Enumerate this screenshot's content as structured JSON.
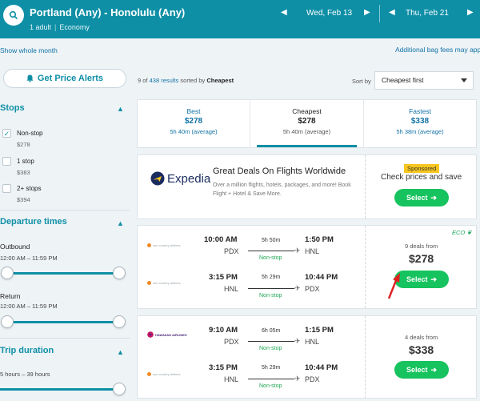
{
  "header": {
    "route": "Portland (Any) - Honolulu (Any)",
    "travelers": "1 adult",
    "cabin": "Economy",
    "depart_date": "Wed, Feb 13",
    "return_date": "Thu, Feb 21",
    "prev_arrow": "◀",
    "next_arrow": "▶"
  },
  "links": {
    "show_month": "Show whole month",
    "bag_fees": "Additional bag fees may apply"
  },
  "price_alert": {
    "label": "Get Price Alerts"
  },
  "filters": {
    "stops": {
      "title": "Stops",
      "options": [
        {
          "label": "Non-stop",
          "price": "$278",
          "checked": true
        },
        {
          "label": "1 stop",
          "price": "$383",
          "checked": false
        },
        {
          "label": "2+ stops",
          "price": "$394",
          "checked": false
        }
      ]
    },
    "departure": {
      "title": "Departure times",
      "outbound_label": "Outbound",
      "outbound_range": "12:00 AM – 11:59 PM",
      "return_label": "Return",
      "return_range": "12:00 AM – 11:59 PM"
    },
    "duration": {
      "title": "Trip duration",
      "range": "5 hours – 39 hours"
    }
  },
  "results": {
    "shown": "9",
    "of_word": "of",
    "total_link": "438 results",
    "sorted_by": "sorted by",
    "sort_key": "Cheapest",
    "sort_label": "Sort by",
    "sort_value": "Cheapest first"
  },
  "sort_tabs": [
    {
      "title": "Best",
      "price": "$278",
      "duration": "5h 40m (average)"
    },
    {
      "title": "Cheapest",
      "price": "$278",
      "duration": "5h 40m (average)"
    },
    {
      "title": "Fastest",
      "price": "$338",
      "duration": "5h 38m (average)"
    }
  ],
  "ad": {
    "brand": "Expedia",
    "title": "Great Deals On Flights Worldwide",
    "description": "Over a million flights, hotels, packages, and more! Book Flight + Hotel & Save More.",
    "sponsored": "Sponsored",
    "cta": "Check prices and save",
    "button": "Select"
  },
  "flights": [
    {
      "eco": "ECO",
      "deals": "9 deals from",
      "price": "$278",
      "button": "Select",
      "legs": [
        {
          "airline": "sun country airlines",
          "dep_time": "10:00 AM",
          "dep_code": "PDX",
          "duration": "5h 50m",
          "stops": "Non-stop",
          "arr_time": "1:50 PM",
          "arr_code": "HNL"
        },
        {
          "airline": "sun country airlines",
          "dep_time": "3:15 PM",
          "dep_code": "HNL",
          "duration": "5h 29m",
          "stops": "Non-stop",
          "arr_time": "10:44 PM",
          "arr_code": "PDX"
        }
      ]
    },
    {
      "deals": "4 deals from",
      "price": "$338",
      "button": "Select",
      "legs": [
        {
          "airline": "HAWAIIAN AIRLINES",
          "dep_time": "9:10 AM",
          "dep_code": "PDX",
          "duration": "6h 05m",
          "stops": "Non-stop",
          "arr_time": "1:15 PM",
          "arr_code": "HNL"
        },
        {
          "airline": "sun country airlines",
          "dep_time": "3:15 PM",
          "dep_code": "HNL",
          "duration": "5h 29m",
          "stops": "Non-stop",
          "arr_time": "10:44 PM",
          "arr_code": "PDX"
        }
      ]
    }
  ],
  "colors": {
    "brand": "#0e8fa6",
    "select": "#16c35e",
    "nonstop": "#20a654",
    "sponsored": "#f7c61f"
  }
}
